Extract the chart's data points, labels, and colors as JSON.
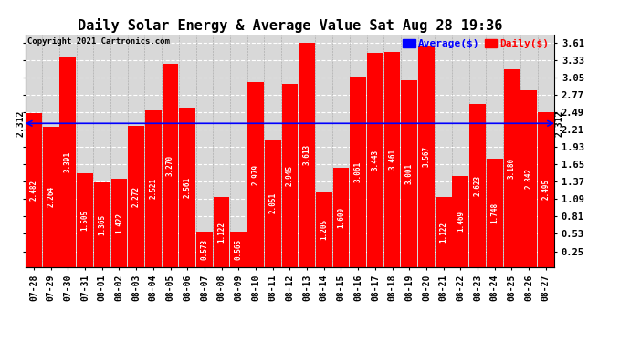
{
  "title": "Daily Solar Energy & Average Value Sat Aug 28 19:36",
  "copyright": "Copyright 2021 Cartronics.com",
  "categories": [
    "07-28",
    "07-29",
    "07-30",
    "07-31",
    "08-01",
    "08-02",
    "08-03",
    "08-04",
    "08-05",
    "08-06",
    "08-07",
    "08-08",
    "08-09",
    "08-10",
    "08-11",
    "08-12",
    "08-13",
    "08-14",
    "08-15",
    "08-16",
    "08-17",
    "08-18",
    "08-19",
    "08-20",
    "08-21",
    "08-22",
    "08-23",
    "08-24",
    "08-25",
    "08-26",
    "08-27"
  ],
  "values": [
    2.482,
    2.264,
    3.391,
    1.505,
    1.365,
    1.422,
    2.272,
    2.521,
    3.27,
    2.561,
    0.573,
    1.122,
    0.565,
    2.979,
    2.051,
    2.945,
    3.613,
    1.205,
    1.6,
    3.061,
    3.443,
    3.461,
    3.001,
    3.567,
    1.122,
    1.469,
    2.623,
    1.748,
    3.18,
    2.842,
    2.495
  ],
  "average": 2.312,
  "bar_color": "#ff0000",
  "average_line_color": "#0000ff",
  "background_color": "#ffffff",
  "plot_bg_color": "#d8d8d8",
  "yticks": [
    0.25,
    0.53,
    0.81,
    1.09,
    1.37,
    1.65,
    1.93,
    2.21,
    2.49,
    2.77,
    3.05,
    3.33,
    3.61
  ],
  "ylim": [
    0.0,
    3.75
  ],
  "title_fontsize": 11,
  "bar_label_fontsize": 5.5,
  "axis_label_fontsize": 7.5,
  "xtick_fontsize": 7,
  "legend_avg_label": "Average($)",
  "legend_daily_label": "Daily($)",
  "average_label": "2.312"
}
